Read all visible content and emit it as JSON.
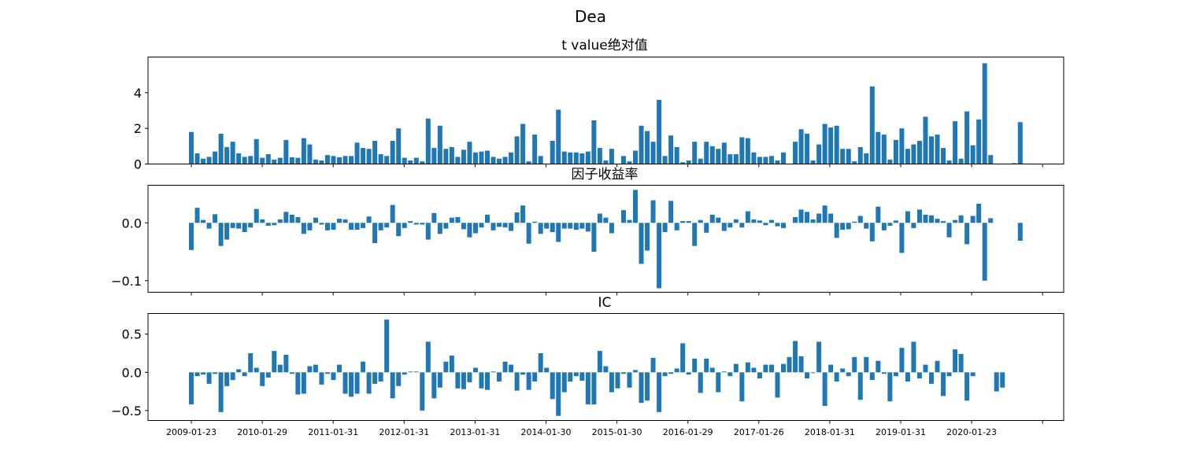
{
  "figure": {
    "title": "Dea"
  },
  "xtick_labels": [
    "2009-01-23",
    "2010-01-29",
    "2011-01-31",
    "2012-01-31",
    "2013-01-31",
    "2014-01-30",
    "2015-01-30",
    "2016-01-29",
    "2017-01-26",
    "2018-01-31",
    "2019-01-31",
    "2020-01-23"
  ],
  "colors": {
    "bar": "#1f77b4"
  },
  "chart_data": [
    {
      "type": "bar",
      "title": "t value绝对值",
      "ylim": [
        0,
        6
      ],
      "yticks": [
        0,
        2,
        4
      ],
      "ytick_labels": [
        "0",
        "2",
        "4"
      ],
      "values": [
        1.8,
        0.6,
        0.3,
        0.4,
        0.7,
        1.7,
        0.95,
        1.25,
        0.6,
        0.4,
        0.45,
        1.4,
        0.35,
        0.55,
        0.25,
        0.35,
        1.35,
        0.38,
        0.35,
        1.45,
        1.1,
        0.25,
        0.2,
        0.5,
        0.45,
        0.38,
        0.45,
        0.45,
        1.2,
        0.9,
        0.85,
        1.3,
        0.55,
        0.45,
        1.3,
        2.0,
        0.35,
        0.2,
        0.35,
        0.15,
        2.55,
        0.9,
        2.15,
        0.85,
        0.95,
        0.4,
        0.8,
        1.25,
        0.65,
        0.7,
        0.75,
        0.4,
        0.3,
        0.4,
        0.65,
        1.55,
        2.25,
        0.15,
        1.65,
        0.45,
        0,
        1.3,
        3.05,
        0.7,
        0.65,
        0.65,
        0.6,
        0.7,
        2.45,
        0.9,
        0.2,
        0.85,
        0,
        0.45,
        0.15,
        0.75,
        2.15,
        1.85,
        1.25,
        3.6,
        0.45,
        1.6,
        0.95,
        0.1,
        0.2,
        1.25,
        0.3,
        1.25,
        1.0,
        0.85,
        1.2,
        0.55,
        0.55,
        1.5,
        1.45,
        0.65,
        0.4,
        0.4,
        0.45,
        0.2,
        0.65,
        0,
        1.25,
        1.95,
        1.7,
        0.2,
        1.1,
        2.25,
        2.05,
        2.15,
        0.85,
        0.85,
        0.15,
        0.95,
        0.6,
        4.35,
        1.8,
        1.65,
        0.25,
        1.35,
        2.0,
        0.85,
        1.1,
        1.3,
        2.65,
        1.55,
        1.65,
        0.9,
        0.2,
        2.4,
        0.3,
        2.95,
        1.05,
        2.5,
        5.65,
        0.5,
        0,
        0,
        0,
        0.05,
        2.35
      ]
    },
    {
      "type": "bar",
      "title": "因子收益率",
      "ylim": [
        -0.12,
        0.065
      ],
      "yticks": [
        0.0,
        -0.1
      ],
      "ytick_labels": [
        "0.0",
        "−0.1"
      ],
      "values": [
        -0.047,
        0.026,
        0.005,
        -0.01,
        0.015,
        -0.04,
        -0.029,
        -0.009,
        -0.01,
        -0.016,
        -0.008,
        0.024,
        0.006,
        -0.005,
        -0.004,
        0.006,
        0.019,
        0.014,
        0.01,
        -0.019,
        -0.013,
        0.009,
        -0.003,
        -0.013,
        -0.012,
        0.007,
        0.006,
        -0.012,
        -0.012,
        -0.009,
        0.011,
        -0.035,
        -0.013,
        -0.008,
        0.031,
        -0.023,
        -0.009,
        0.003,
        -0.003,
        -0.003,
        -0.029,
        0.017,
        -0.019,
        -0.01,
        0.009,
        0.01,
        -0.011,
        -0.025,
        -0.018,
        -0.008,
        0.014,
        -0.013,
        -0.007,
        -0.008,
        -0.014,
        0.018,
        0.03,
        -0.036,
        0.002,
        -0.019,
        -0.01,
        -0.016,
        -0.033,
        -0.01,
        -0.01,
        -0.012,
        -0.01,
        -0.015,
        -0.05,
        0.016,
        0.009,
        -0.018,
        0,
        0.022,
        0.005,
        0.057,
        -0.071,
        -0.048,
        0.039,
        -0.113,
        -0.016,
        0.038,
        -0.013,
        0.003,
        0.003,
        -0.04,
        0.005,
        -0.017,
        0.014,
        0.009,
        -0.014,
        -0.008,
        0.006,
        -0.008,
        0.02,
        0.006,
        0.004,
        -0.004,
        0.005,
        -0.006,
        -0.009,
        0,
        0.01,
        0.023,
        0.019,
        0.006,
        0.016,
        0.03,
        0.016,
        -0.026,
        -0.012,
        -0.011,
        0.002,
        0.012,
        -0.01,
        -0.032,
        0.028,
        -0.013,
        -0.005,
        0.004,
        -0.052,
        0.02,
        -0.009,
        0.023,
        0.014,
        0.013,
        0.007,
        0.003,
        -0.025,
        0.005,
        0.013,
        -0.037,
        0.012,
        0.033,
        -0.1,
        0.008,
        0,
        0,
        0,
        0,
        -0.031
      ]
    },
    {
      "type": "bar",
      "title": "IC",
      "ylim": [
        -0.63,
        0.77
      ],
      "yticks": [
        0.5,
        0.0,
        -0.5
      ],
      "ytick_labels": [
        "0.5",
        "0.0",
        "−0.5"
      ],
      "values": [
        -0.42,
        -0.05,
        -0.03,
        -0.15,
        -0.02,
        -0.52,
        -0.18,
        -0.1,
        0.04,
        -0.05,
        0.25,
        0.06,
        -0.18,
        -0.07,
        0.28,
        0.1,
        0.23,
        -0.02,
        -0.29,
        -0.28,
        0.08,
        0.1,
        -0.16,
        -0.02,
        -0.1,
        0.1,
        -0.28,
        -0.32,
        -0.28,
        0.14,
        -0.28,
        -0.15,
        -0.12,
        0.69,
        -0.34,
        -0.18,
        -0.03,
        0.01,
        0.01,
        -0.5,
        0.4,
        -0.34,
        -0.2,
        0.14,
        0.22,
        -0.21,
        -0.22,
        -0.13,
        0.06,
        -0.21,
        -0.23,
        0.01,
        -0.12,
        0.14,
        0.1,
        -0.24,
        -0.03,
        -0.23,
        -0.12,
        0.25,
        0.06,
        -0.35,
        -0.57,
        -0.26,
        -0.12,
        -0.05,
        -0.11,
        -0.42,
        -0.42,
        0.28,
        0.08,
        -0.26,
        -0.21,
        -0.02,
        -0.2,
        0.03,
        -0.4,
        -0.37,
        0.19,
        -0.52,
        -0.05,
        -0.02,
        0.05,
        0.38,
        -0.03,
        0.18,
        -0.27,
        0.18,
        0.06,
        -0.26,
        0.01,
        -0.05,
        0.11,
        -0.38,
        0.13,
        0.06,
        -0.08,
        0.1,
        0.1,
        -0.33,
        0.11,
        0.2,
        0.41,
        0.21,
        -0.08,
        -0.01,
        0.4,
        -0.44,
        0.1,
        -0.12,
        0.05,
        -0.05,
        0.2,
        -0.36,
        0.2,
        -0.1,
        0.15,
        -0.02,
        -0.38,
        -0.05,
        0.32,
        -0.12,
        0.4,
        -0.08,
        0.1,
        -0.15,
        0.15,
        -0.31,
        -0.05,
        0.3,
        0.24,
        -0.37,
        -0.05,
        0,
        0,
        0,
        -0.25,
        -0.2
      ]
    }
  ]
}
